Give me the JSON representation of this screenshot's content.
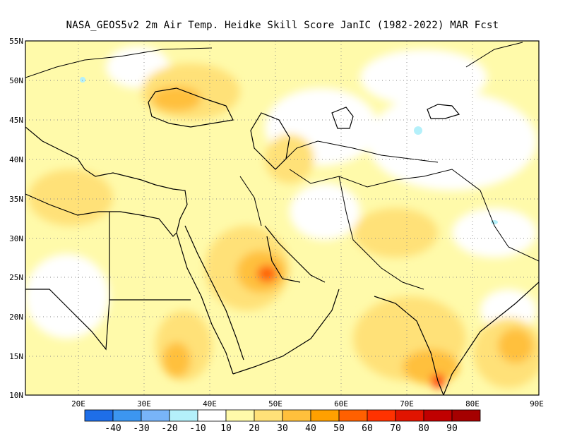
{
  "title": "NASA_GEOS5v2  2m Air Temp. Heidke Skill Score JanIC (1982-2022) MAR Fcst",
  "map": {
    "lon_range": [
      12,
      90
    ],
    "lat_range": [
      10,
      55
    ],
    "lat_labels": [
      "55N",
      "50N",
      "45N",
      "40N",
      "35N",
      "30N",
      "25N",
      "20N",
      "15N",
      "10N"
    ],
    "lon_labels": [
      "20E",
      "30E",
      "40E",
      "50E",
      "60E",
      "70E",
      "80E",
      "90E"
    ],
    "lat_values": [
      55,
      50,
      45,
      40,
      35,
      30,
      25,
      20,
      15,
      10
    ],
    "lon_values": [
      20,
      30,
      40,
      50,
      60,
      70,
      80,
      90
    ],
    "grid": "dotted"
  },
  "colorbar": {
    "colors": [
      "#1e6ee8",
      "#3c96f0",
      "#78b4f8",
      "#b4f0fa",
      "#ffffff",
      "#fffaaa",
      "#ffe178",
      "#ffc03c",
      "#ffa000",
      "#ff6000",
      "#ff3200",
      "#e11400",
      "#c00000",
      "#a50000"
    ],
    "labels": [
      "-40",
      "-30",
      "-20",
      "-10",
      "10",
      "20",
      "30",
      "40",
      "50",
      "60",
      "70",
      "80",
      "90"
    ]
  }
}
